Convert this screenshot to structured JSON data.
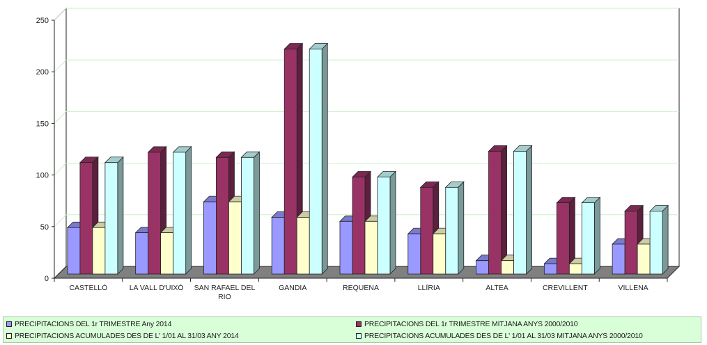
{
  "chart_data": {
    "type": "bar",
    "categories": [
      "CASTELLÓ",
      "LA VALL D'UIXÓ",
      "SAN RAFAEL DEL RIO",
      "GANDIA",
      "REQUENA",
      "LLÍRIA",
      "ALTEA",
      "CREVILLENT",
      "VILLENA"
    ],
    "series": [
      {
        "name": "PRECIPITACIONS DEL 1r TRIMESTRE Any 2014",
        "color": "#9999ff",
        "values": [
          45,
          40,
          70,
          55,
          51,
          39,
          13,
          10,
          29
        ]
      },
      {
        "name": "PRECIPITACIONS DEL 1r TRIMESTRE MITJANA ANYS 2000/2010",
        "color": "#993366",
        "values": [
          108,
          118,
          113,
          218,
          94,
          84,
          119,
          69,
          61
        ]
      },
      {
        "name": "PRECIPITACIONS ACUMULADES DES DE L' 1/01 AL 31/03 ANY 2014",
        "color": "#ffffcc",
        "values": [
          45,
          40,
          70,
          55,
          51,
          39,
          13,
          10,
          29
        ]
      },
      {
        "name": "PRECIPITACIONS ACUMULADES DES DE L' 1/01 AL 31/03 MITJANA ANYS 2000/2010",
        "color": "#ccffff",
        "values": [
          108,
          118,
          113,
          218,
          94,
          84,
          119,
          69,
          61
        ]
      }
    ],
    "ylim": [
      0,
      250
    ],
    "yticks": [
      0,
      50,
      100,
      150,
      200,
      250
    ],
    "grid": true,
    "three_d": true,
    "legend_position": "bottom",
    "legend_background": "#d9ffd9",
    "gridline_color": "#c8f0c8",
    "floor_color": "#808080"
  },
  "legend": {
    "items": [
      {
        "label": "PRECIPITACIONS DEL 1r TRIMESTRE Any 2014",
        "color": "#9999ff"
      },
      {
        "label": "PRECIPITACIONS DEL 1r TRIMESTRE MITJANA ANYS 2000/2010",
        "color": "#993366"
      },
      {
        "label": "PRECIPITACIONS ACUMULADES DES DE L' 1/01 AL 31/03 ANY 2014",
        "color": "#ffffcc"
      },
      {
        "label": "PRECIPITACIONS ACUMULADES DES DE L' 1/01 AL 31/03 MITJANA ANYS 2000/2010",
        "color": "#ccffff"
      }
    ]
  }
}
